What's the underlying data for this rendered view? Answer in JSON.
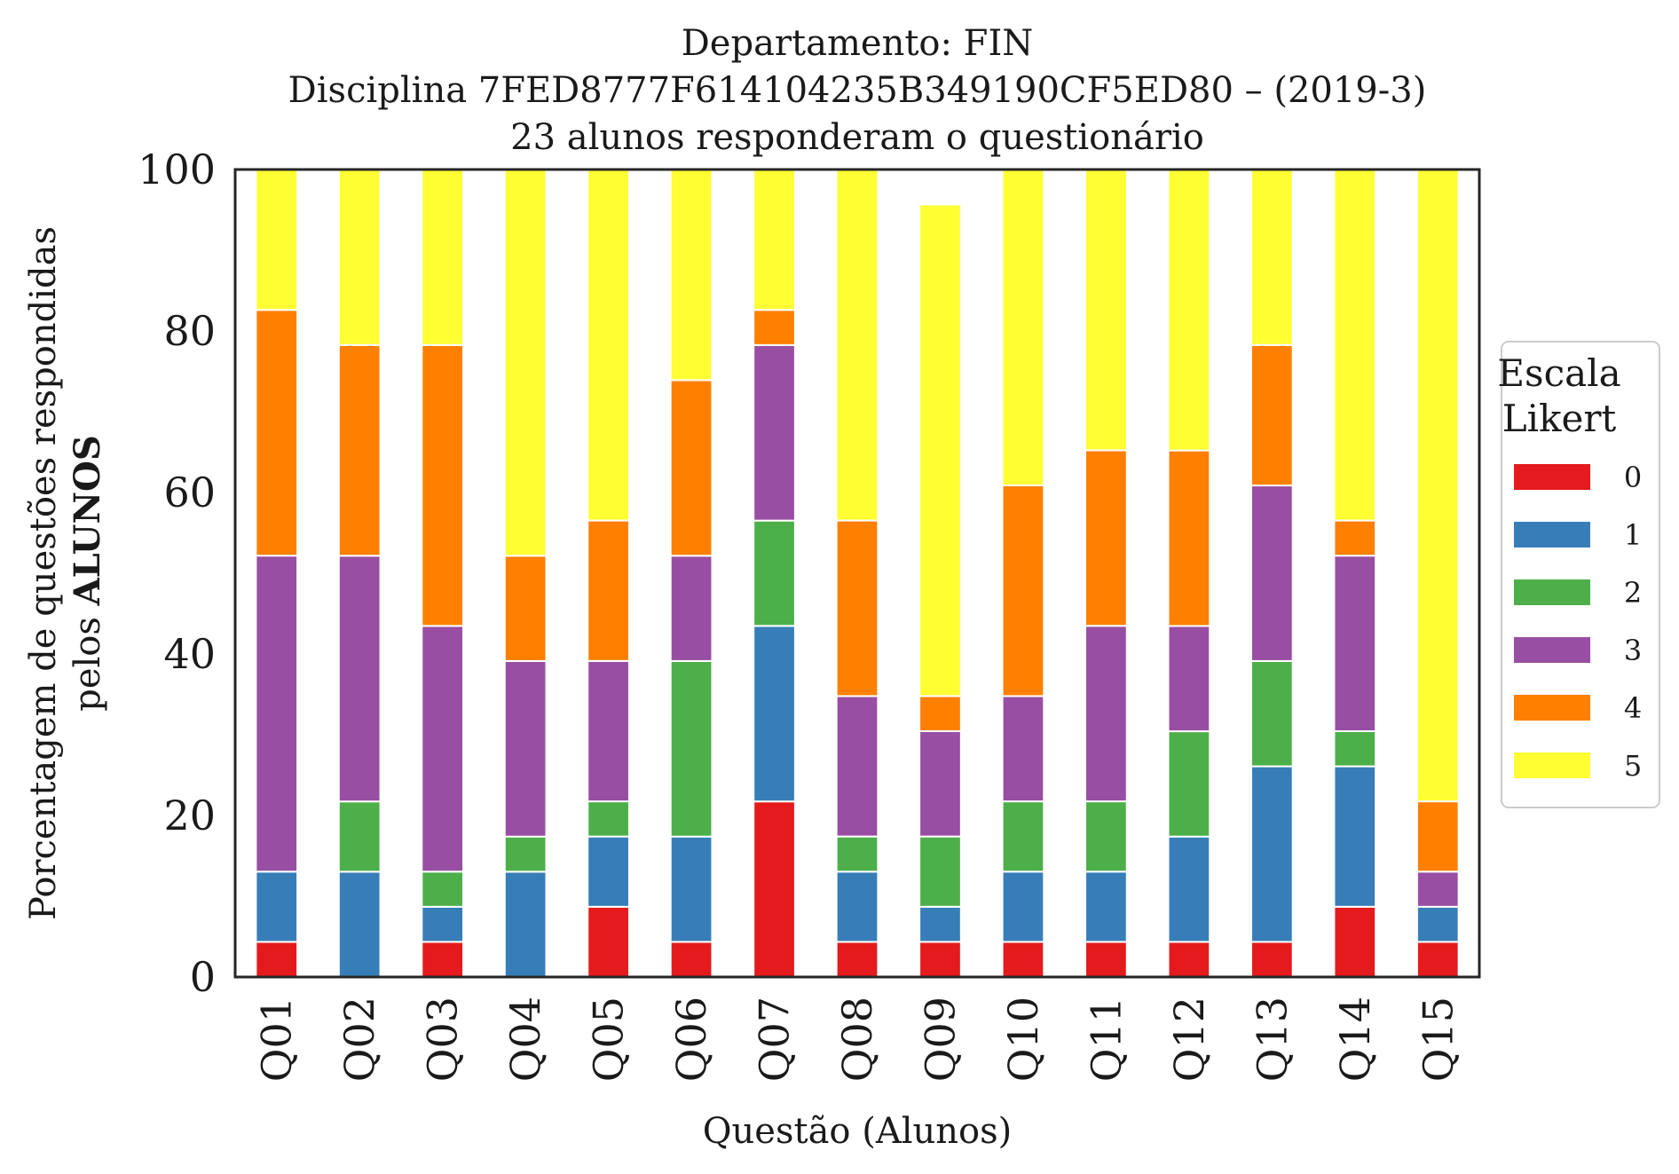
{
  "chart_data": {
    "type": "bar",
    "stacked": true,
    "title_lines": [
      "Departamento: FIN",
      "Disciplina 7FED8777F614104235B349190CF5ED80 – (2019-3)",
      "23 alunos responderam o questionário"
    ],
    "xlabel": "Questão (Alunos)",
    "ylabel_line1": "Porcentagem de questões respondidas",
    "ylabel_line2_prefix": "pelos ",
    "ylabel_line2_bold": "ALUNOS",
    "ylim": [
      0,
      100
    ],
    "yticks": [
      "0",
      "20",
      "40",
      "60",
      "80",
      "100"
    ],
    "categories": [
      "Q01",
      "Q02",
      "Q03",
      "Q04",
      "Q05",
      "Q06",
      "Q07",
      "Q08",
      "Q09",
      "Q10",
      "Q11",
      "Q12",
      "Q13",
      "Q14",
      "Q15"
    ],
    "legend": {
      "title_lines": [
        "Escala",
        "Likert"
      ],
      "placement": "right"
    },
    "series": [
      {
        "name": "0",
        "color": "#e41a1c",
        "values": [
          4.35,
          0,
          4.35,
          0,
          8.7,
          4.35,
          21.74,
          4.35,
          4.35,
          4.35,
          4.35,
          4.35,
          4.35,
          8.7,
          4.35
        ]
      },
      {
        "name": "1",
        "color": "#377eb8",
        "values": [
          8.7,
          13.04,
          4.35,
          13.04,
          8.7,
          13.04,
          21.74,
          8.7,
          4.35,
          8.7,
          8.7,
          13.04,
          21.74,
          17.39,
          4.35
        ]
      },
      {
        "name": "2",
        "color": "#4daf4a",
        "values": [
          0,
          8.7,
          4.35,
          4.35,
          4.35,
          21.74,
          13.04,
          4.35,
          8.7,
          8.7,
          8.7,
          13.04,
          13.04,
          4.35,
          0
        ]
      },
      {
        "name": "3",
        "color": "#984ea3",
        "values": [
          39.13,
          30.43,
          30.43,
          21.74,
          17.39,
          13.04,
          21.74,
          17.39,
          13.04,
          13.04,
          21.74,
          13.04,
          21.74,
          21.74,
          4.35
        ]
      },
      {
        "name": "4",
        "color": "#ff7f00",
        "values": [
          30.43,
          26.09,
          34.78,
          13.04,
          17.39,
          21.74,
          4.35,
          21.74,
          4.35,
          26.09,
          21.74,
          21.74,
          17.39,
          4.35,
          8.7
        ]
      },
      {
        "name": "5",
        "color": "#ffff33",
        "values": [
          17.39,
          21.74,
          21.74,
          47.83,
          43.48,
          26.09,
          17.39,
          43.48,
          60.87,
          39.13,
          34.78,
          34.78,
          21.74,
          43.48,
          78.26
        ]
      }
    ]
  }
}
